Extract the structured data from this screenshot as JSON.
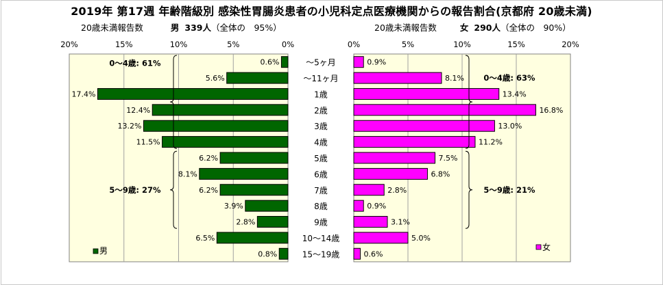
{
  "title": "2019年 第17週 年齢階級別 感染性胃腸炎患者の小児科定点医療機関からの報告割合(京都府 20歳未満)",
  "male_header": {
    "prefix": "20歳未満報告数",
    "sex": "男",
    "count": "339人",
    "share": "（全体の　95%）"
  },
  "female_header": {
    "prefix": "20歳未満報告数",
    "sex": "女",
    "count": "290人",
    "share": "（全体の　90%）"
  },
  "chart_data": {
    "type": "bar",
    "orientation": "horizontal-population-pyramid",
    "categories": [
      "～5ヶ月",
      "～11ヶ月",
      "1歳",
      "2歳",
      "3歳",
      "4歳",
      "5歳",
      "6歳",
      "7歳",
      "8歳",
      "9歳",
      "10～14歳",
      "15～19歳"
    ],
    "series": [
      {
        "name": "男",
        "color": "#006600",
        "values": [
          0.6,
          5.6,
          17.4,
          12.4,
          13.2,
          11.5,
          6.2,
          8.1,
          6.2,
          3.9,
          2.8,
          6.5,
          0.8
        ],
        "labels": [
          "0.6%",
          "5.6%",
          "17.4%",
          "12.4%",
          "13.2%",
          "11.5%",
          "6.2%",
          "8.1%",
          "6.2%",
          "3.9%",
          "2.8%",
          "6.5%",
          "0.8%"
        ]
      },
      {
        "name": "女",
        "color": "#ff00ff",
        "values": [
          0.9,
          8.1,
          13.4,
          16.8,
          13.0,
          11.2,
          7.5,
          6.8,
          2.8,
          0.9,
          3.1,
          5.0,
          0.6
        ],
        "labels": [
          "0.9%",
          "8.1%",
          "13.4%",
          "16.8%",
          "13.0%",
          "11.2%",
          "7.5%",
          "6.8%",
          "2.8%",
          "0.9%",
          "3.1%",
          "5.0%",
          "0.6%"
        ]
      }
    ],
    "x_ticks": [
      0,
      5,
      10,
      15,
      20
    ],
    "x_tick_labels": [
      "0%",
      "5%",
      "10%",
      "15%",
      "20%"
    ],
    "xlim": [
      0,
      20
    ],
    "grid": true,
    "plot_background": "#ffffe0",
    "annotations": {
      "male": [
        {
          "text": "0～4歳: 61%",
          "from": 0,
          "to": 5
        },
        {
          "text": "5～9歳: 27%",
          "from": 6,
          "to": 10
        }
      ],
      "female": [
        {
          "text": "0～4歳: 63%",
          "from": 0,
          "to": 5
        },
        {
          "text": "5～9歳: 21%",
          "from": 6,
          "to": 10
        }
      ]
    },
    "legend": {
      "male": "男",
      "female": "女",
      "position": "bottom"
    }
  }
}
